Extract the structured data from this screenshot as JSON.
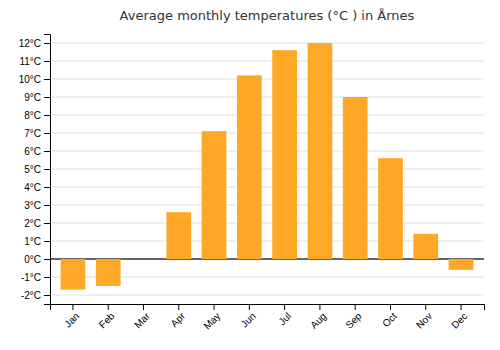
{
  "chart_data": {
    "type": "bar",
    "title": "Average monthly temperatures (°C ) in Årnes",
    "categories": [
      "Jan",
      "Feb",
      "Mar",
      "Apr",
      "May",
      "Jun",
      "Jul",
      "Aug",
      "Sep",
      "Oct",
      "Nov",
      "Dec"
    ],
    "values": [
      -1.7,
      -1.5,
      0.0,
      2.6,
      7.1,
      10.2,
      11.6,
      12.0,
      9.0,
      5.6,
      1.4,
      -0.6
    ],
    "color": "#FFA726",
    "ylim": [
      -2.5,
      12.5
    ],
    "yticks": [
      {
        "value": -2,
        "label": "-2°C"
      },
      {
        "value": -1,
        "label": "-1°C"
      },
      {
        "value": 0,
        "label": "0°C"
      },
      {
        "value": 1,
        "label": "1°C"
      },
      {
        "value": 2,
        "label": "2°C"
      },
      {
        "value": 3,
        "label": "3°C"
      },
      {
        "value": 4,
        "label": "4°C"
      },
      {
        "value": 5,
        "label": "5°C"
      },
      {
        "value": 6,
        "label": "6°C"
      },
      {
        "value": 7,
        "label": "7°C"
      },
      {
        "value": 8,
        "label": "8°C"
      },
      {
        "value": 9,
        "label": "9°C"
      },
      {
        "value": 10,
        "label": "10°C"
      },
      {
        "value": 11,
        "label": "11°C"
      },
      {
        "value": 12,
        "label": "12°C"
      }
    ],
    "grid": true
  }
}
